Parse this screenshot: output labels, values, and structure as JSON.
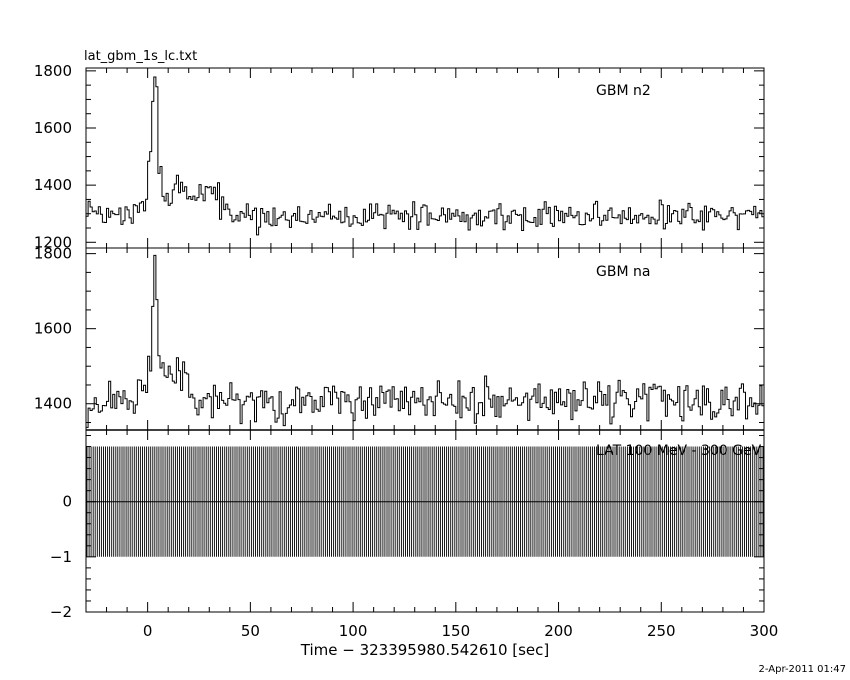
{
  "header": {
    "filename": "lat_gbm_1s_lc.txt",
    "timestamp": "2-Apr-2011 01:47"
  },
  "chart_data": [
    {
      "type": "line",
      "series_name": "GBM n2",
      "title": "",
      "xlim": [
        -30,
        300
      ],
      "ylim": [
        1180,
        1810
      ],
      "yticks": [
        1200,
        1400,
        1600,
        1800
      ],
      "ytick_labels": [
        "1200",
        "1400",
        "1600",
        "1800"
      ],
      "x_step": 1,
      "baseline": 1295,
      "noise": 38,
      "features": [
        {
          "x": [
            -30,
            -5
          ],
          "level": 1290
        },
        {
          "x": [
            -5,
            0
          ],
          "level": 1330
        },
        {
          "x": [
            0,
            2
          ],
          "level": 1480
        },
        {
          "x": [
            2,
            3
          ],
          "level": 1680
        },
        {
          "x": [
            3,
            4
          ],
          "level": 1780
        },
        {
          "x": [
            4,
            5
          ],
          "level": 1720
        },
        {
          "x": [
            5,
            7
          ],
          "level": 1450
        },
        {
          "x": [
            7,
            12
          ],
          "level": 1360
        },
        {
          "x": [
            12,
            15
          ],
          "level": 1420
        },
        {
          "x": [
            15,
            35
          ],
          "level": 1375
        },
        {
          "x": [
            35,
            40
          ],
          "level": 1320
        },
        {
          "x": [
            40,
            300
          ],
          "level": 1290
        }
      ]
    },
    {
      "type": "line",
      "series_name": "GBM na",
      "title": "",
      "xlim": [
        -30,
        300
      ],
      "ylim": [
        1330,
        1815
      ],
      "yticks": [
        1400,
        1600,
        1800
      ],
      "ytick_labels": [
        "1400",
        "1600",
        "1800"
      ],
      "x_step": 1,
      "baseline": 1410,
      "noise": 45,
      "features": [
        {
          "x": [
            -30,
            -5
          ],
          "level": 1400
        },
        {
          "x": [
            -5,
            0
          ],
          "level": 1440
        },
        {
          "x": [
            0,
            2
          ],
          "level": 1520
        },
        {
          "x": [
            2,
            3
          ],
          "level": 1650
        },
        {
          "x": [
            3,
            4
          ],
          "level": 1800
        },
        {
          "x": [
            4,
            5
          ],
          "level": 1700
        },
        {
          "x": [
            5,
            8
          ],
          "level": 1500
        },
        {
          "x": [
            8,
            20
          ],
          "level": 1480
        },
        {
          "x": [
            20,
            300
          ],
          "level": 1410
        }
      ]
    },
    {
      "type": "bar",
      "series_name": "LAT 100 MeV - 300 GeV",
      "title": "",
      "xlim": [
        -30,
        300
      ],
      "ylim": [
        -2,
        1.3
      ],
      "yticks": [
        -2,
        -1,
        0
      ],
      "ytick_labels": [
        "−2",
        "−1",
        "0"
      ],
      "value": 0,
      "error_upper": 1,
      "error_lower": 1,
      "x_step": 1
    }
  ],
  "x_axis": {
    "xlabel": "Time − 323395980.542610 [sec]",
    "ticks": [
      0,
      50,
      100,
      150,
      200,
      250,
      300
    ],
    "tick_labels": [
      "0",
      "50",
      "100",
      "150",
      "200",
      "250",
      "300"
    ]
  }
}
